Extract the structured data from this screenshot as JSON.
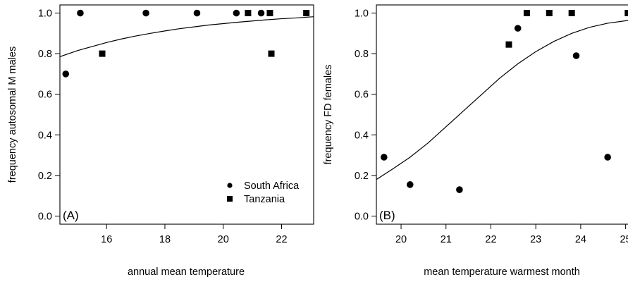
{
  "chart_data": [
    {
      "type": "scatter",
      "panel_label": "(A)",
      "xlabel": "annual mean temperature",
      "ylabel": "frequency autosomal M males",
      "xlim": [
        14.4,
        23.1
      ],
      "ylim": [
        -0.04,
        1.04
      ],
      "xticks": [
        16,
        18,
        20,
        22
      ],
      "yticks": [
        0.0,
        0.2,
        0.4,
        0.6,
        0.8,
        1.0
      ],
      "ytick_labels": [
        "0.0",
        "0.2",
        "0.4",
        "0.6",
        "0.8",
        "1.0"
      ],
      "legend_position": "bottom-right",
      "legend": [
        {
          "name": "South Africa",
          "marker": "circle"
        },
        {
          "name": "Tanzania",
          "marker": "square"
        }
      ],
      "series": [
        {
          "name": "South Africa",
          "marker": "circle",
          "x": [
            14.6,
            15.1,
            17.35,
            19.1,
            20.45,
            21.3
          ],
          "y": [
            0.7,
            1.0,
            1.0,
            1.0,
            1.0,
            1.0
          ]
        },
        {
          "name": "Tanzania",
          "marker": "square",
          "x": [
            15.85,
            20.85,
            21.6,
            21.65,
            22.85
          ],
          "y": [
            0.8,
            1.0,
            1.0,
            0.8,
            1.0
          ]
        }
      ],
      "fit_curve": {
        "x": [
          14.4,
          15.0,
          15.5,
          16.0,
          16.5,
          17.0,
          17.5,
          18.0,
          18.5,
          19.0,
          19.5,
          20.0,
          20.5,
          21.0,
          21.5,
          22.0,
          22.5,
          23.1
        ],
        "y": [
          0.785,
          0.815,
          0.835,
          0.855,
          0.872,
          0.887,
          0.9,
          0.912,
          0.923,
          0.932,
          0.941,
          0.948,
          0.955,
          0.961,
          0.967,
          0.972,
          0.976,
          0.982
        ]
      }
    },
    {
      "type": "scatter",
      "panel_label": "(B)",
      "xlabel": "mean temperature warmest month",
      "ylabel": "frequency FD females",
      "xlim": [
        19.45,
        25.1
      ],
      "ylim": [
        -0.04,
        1.04
      ],
      "xticks": [
        20,
        21,
        22,
        23,
        24,
        25
      ],
      "yticks": [
        0.0,
        0.2,
        0.4,
        0.6,
        0.8,
        1.0
      ],
      "ytick_labels": [
        "0.0",
        "0.2",
        "0.4",
        "0.6",
        "0.8",
        "1.0"
      ],
      "series": [
        {
          "name": "South Africa",
          "marker": "circle",
          "x": [
            19.62,
            20.2,
            21.3,
            22.6,
            23.9,
            24.6
          ],
          "y": [
            0.29,
            0.155,
            0.13,
            0.925,
            0.79,
            0.29
          ]
        },
        {
          "name": "Tanzania",
          "marker": "square",
          "x": [
            22.4,
            22.8,
            23.3,
            23.8,
            25.05
          ],
          "y": [
            0.845,
            1.0,
            1.0,
            1.0,
            1.0
          ]
        }
      ],
      "fit_curve": {
        "x": [
          19.45,
          19.8,
          20.2,
          20.6,
          21.0,
          21.4,
          21.8,
          22.2,
          22.6,
          23.0,
          23.4,
          23.8,
          24.2,
          24.6,
          25.1
        ],
        "y": [
          0.18,
          0.23,
          0.29,
          0.36,
          0.44,
          0.52,
          0.6,
          0.68,
          0.75,
          0.81,
          0.86,
          0.9,
          0.93,
          0.95,
          0.965
        ]
      }
    }
  ]
}
